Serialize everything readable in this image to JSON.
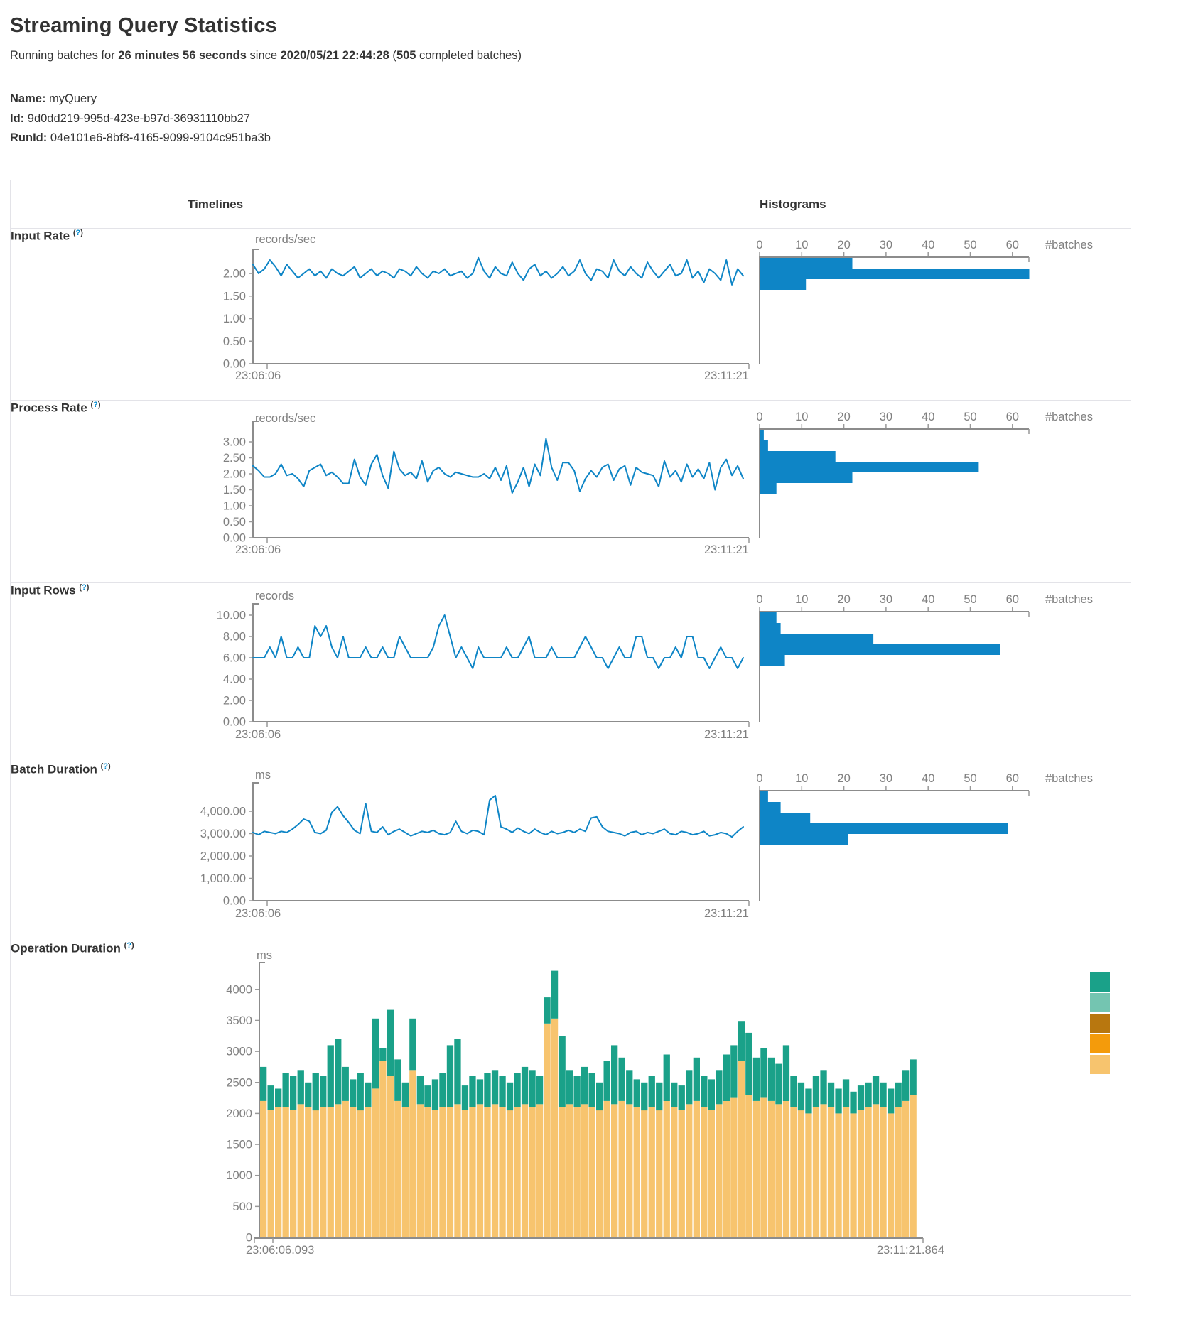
{
  "page": {
    "title": "Streaming Query Statistics",
    "status": {
      "pre": "Running batches for ",
      "duration": "26 minutes 56 seconds",
      "mid": " since ",
      "start_time": "2020/05/21 22:44:28",
      "open": " (",
      "completed": "505",
      "close": " completed batches)"
    },
    "fields": [
      {
        "label": "Name:",
        "value": "myQuery"
      },
      {
        "label": "Id:",
        "value": "9d0dd219-995d-423e-b97d-36931110bb27"
      },
      {
        "label": "RunId:",
        "value": "04e101e6-8bf8-4165-9099-9104c951ba3b"
      }
    ]
  },
  "table": {
    "col_timelines": "Timelines",
    "col_histograms": "Histograms",
    "help": {
      "open": "(",
      "q": "?",
      "close": ")"
    }
  },
  "colors": {
    "series_blue": "#0e85c6",
    "axis_gray": "#8c8c8c",
    "tick_text_gray": "#808080",
    "help_blue": "#0088cc",
    "table_border": "#e3e3e8",
    "stack_teal": "#1aa189",
    "stack_tan": "#f7c46e",
    "legend_swatches": [
      "#1aa189",
      "#74c5b1",
      "#b8770f",
      "#f49b0b",
      "#f7c46e"
    ]
  },
  "chart_data": [
    {
      "row_label": "Input Rate",
      "timeline": {
        "type": "line",
        "unit": "records/sec",
        "x_start": "23:06:06",
        "x_end": "23:11:21",
        "yticks": [
          0,
          0.5,
          1,
          1.5,
          2
        ],
        "ytick_labels": [
          "0.00",
          "0.50",
          "1.00",
          "1.50",
          "2.00"
        ],
        "values": [
          2.2,
          2.0,
          2.1,
          2.3,
          2.15,
          1.95,
          2.2,
          2.05,
          1.9,
          2.0,
          2.1,
          1.95,
          2.05,
          1.9,
          2.1,
          2.0,
          1.95,
          2.05,
          2.15,
          1.9,
          2.0,
          2.1,
          1.95,
          2.05,
          2.0,
          1.9,
          2.1,
          2.05,
          1.95,
          2.15,
          2.0,
          1.9,
          2.05,
          2.0,
          2.1,
          1.95,
          2.0,
          2.05,
          1.9,
          2.0,
          2.35,
          2.05,
          1.9,
          2.15,
          2.0,
          1.95,
          2.25,
          2.0,
          1.85,
          2.1,
          2.2,
          1.95,
          2.05,
          1.9,
          2.0,
          2.15,
          1.95,
          2.05,
          2.3,
          2.0,
          1.85,
          2.1,
          2.05,
          1.9,
          2.3,
          2.05,
          1.95,
          2.15,
          2.0,
          1.9,
          2.25,
          2.05,
          1.9,
          2.05,
          2.2,
          1.95,
          2.0,
          2.3,
          1.9,
          2.05,
          1.8,
          2.1,
          2.0,
          1.85,
          2.3,
          1.75,
          2.1,
          1.95
        ]
      },
      "histogram": {
        "type": "bar",
        "orientation": "horizontal",
        "xticks": [
          0,
          10,
          20,
          30,
          40,
          50,
          60
        ],
        "xlabel": "#batches",
        "bins_top_to_bottom": [
          22,
          64,
          11
        ]
      }
    },
    {
      "row_label": "Process Rate",
      "timeline": {
        "type": "line",
        "unit": "records/sec",
        "x_start": "23:06:06",
        "x_end": "23:11:21",
        "yticks": [
          0,
          0.5,
          1,
          1.5,
          2,
          2.5,
          3
        ],
        "ytick_labels": [
          "0.00",
          "0.50",
          "1.00",
          "1.50",
          "2.00",
          "2.50",
          "3.00"
        ],
        "values": [
          2.25,
          2.1,
          1.9,
          1.9,
          2.0,
          2.3,
          1.95,
          2.0,
          1.85,
          1.6,
          2.1,
          2.2,
          2.3,
          1.95,
          2.05,
          1.9,
          1.7,
          1.7,
          2.45,
          1.9,
          1.65,
          2.3,
          2.6,
          1.95,
          1.55,
          2.7,
          2.15,
          1.95,
          2.05,
          1.85,
          2.4,
          1.75,
          2.1,
          2.2,
          2.0,
          1.9,
          2.05,
          2.0,
          1.95,
          1.9,
          1.9,
          2.0,
          1.85,
          2.2,
          1.8,
          2.25,
          1.4,
          1.75,
          2.2,
          1.6,
          2.3,
          1.95,
          3.1,
          2.2,
          1.8,
          2.35,
          2.35,
          2.1,
          1.45,
          1.85,
          2.1,
          1.9,
          2.2,
          2.3,
          1.8,
          2.15,
          2.25,
          1.65,
          2.2,
          2.05,
          2.0,
          1.95,
          1.6,
          2.4,
          1.9,
          2.1,
          1.75,
          2.3,
          1.9,
          2.15,
          1.85,
          2.35,
          1.5,
          2.2,
          2.45,
          1.95,
          2.25,
          1.85
        ]
      },
      "histogram": {
        "type": "bar",
        "orientation": "horizontal",
        "xticks": [
          0,
          10,
          20,
          30,
          40,
          50,
          60
        ],
        "xlabel": "#batches",
        "bins_top_to_bottom": [
          1,
          2,
          18,
          52,
          22,
          4
        ]
      }
    },
    {
      "row_label": "Input Rows",
      "timeline": {
        "type": "line",
        "unit": "records",
        "x_start": "23:06:06",
        "x_end": "23:11:21",
        "yticks": [
          0,
          2,
          4,
          6,
          8,
          10
        ],
        "ytick_labels": [
          "0.00",
          "2.00",
          "4.00",
          "6.00",
          "8.00",
          "10.00"
        ],
        "values": [
          6,
          6,
          6,
          7,
          6,
          8,
          6,
          6,
          7,
          6,
          6,
          9,
          8,
          9,
          7,
          6,
          8,
          6,
          6,
          6,
          7,
          6,
          6,
          7,
          6,
          6,
          8,
          7,
          6,
          6,
          6,
          6,
          7,
          9,
          10,
          8,
          6,
          7,
          6,
          5,
          7,
          6,
          6,
          6,
          6,
          7,
          6,
          6,
          7,
          8,
          6,
          6,
          6,
          7,
          6,
          6,
          6,
          6,
          7,
          8,
          7,
          6,
          6,
          5,
          6,
          7,
          6,
          6,
          8,
          8,
          6,
          6,
          5,
          6,
          6,
          7,
          6,
          8,
          8,
          6,
          6,
          5,
          6,
          7,
          6,
          6,
          5,
          6
        ]
      },
      "histogram": {
        "type": "bar",
        "orientation": "horizontal",
        "xticks": [
          0,
          10,
          20,
          30,
          40,
          50,
          60
        ],
        "xlabel": "#batches",
        "bins_top_to_bottom": [
          4,
          5,
          27,
          57,
          6
        ]
      }
    },
    {
      "row_label": "Batch Duration",
      "timeline": {
        "type": "line",
        "unit": "ms",
        "x_start": "23:06:06",
        "x_end": "23:11:21",
        "yticks": [
          0,
          1000,
          2000,
          3000,
          4000
        ],
        "ytick_labels": [
          "0.00",
          "1,000.00",
          "2,000.00",
          "3,000.00",
          "4,000.00"
        ],
        "values": [
          3050,
          2950,
          3100,
          3050,
          3000,
          3100,
          3050,
          3200,
          3400,
          3650,
          3550,
          3050,
          3000,
          3150,
          3950,
          4200,
          3800,
          3500,
          3150,
          3000,
          4350,
          3100,
          3050,
          3300,
          2950,
          3100,
          3200,
          3050,
          2900,
          3000,
          3100,
          3050,
          3150,
          3000,
          2950,
          3050,
          3550,
          3100,
          3000,
          3150,
          3100,
          2950,
          4500,
          4700,
          3300,
          3200,
          3050,
          3250,
          3100,
          3000,
          3200,
          3050,
          2950,
          3100,
          3000,
          3050,
          3150,
          3050,
          3200,
          3100,
          3700,
          3750,
          3300,
          3100,
          3050,
          3000,
          2900,
          3050,
          3100,
          2950,
          3050,
          3000,
          3100,
          3200,
          3000,
          2950,
          3100,
          3050,
          2950,
          3000,
          3100,
          2900,
          2950,
          3050,
          3000,
          2850,
          3100,
          3300
        ]
      },
      "histogram": {
        "type": "bar",
        "orientation": "horizontal",
        "xticks": [
          0,
          10,
          20,
          30,
          40,
          50,
          60
        ],
        "xlabel": "#batches",
        "bins_top_to_bottom": [
          2,
          5,
          12,
          59,
          21
        ]
      }
    },
    {
      "row_label": "Operation Duration",
      "timeline": {
        "type": "stacked-bar",
        "unit": "ms",
        "x_start": "23:06:06.093",
        "x_end": "23:11:21.864",
        "yticks": [
          0,
          500,
          1000,
          1500,
          2000,
          2500,
          3000,
          3500,
          4000
        ],
        "ytick_labels": [
          "0",
          "500",
          "1000",
          "1500",
          "2000",
          "2500",
          "3000",
          "3500",
          "4000"
        ],
        "series": [
          {
            "name": "bottom-tan",
            "color": "#f7c46e",
            "values": [
              2200,
              2050,
              2100,
              2100,
              2050,
              2150,
              2100,
              2050,
              2100,
              2100,
              2150,
              2200,
              2100,
              2050,
              2100,
              2400,
              2850,
              2600,
              2200,
              2100,
              2700,
              2150,
              2100,
              2050,
              2100,
              2100,
              2150,
              2050,
              2100,
              2150,
              2100,
              2150,
              2100,
              2050,
              2100,
              2150,
              2100,
              2150,
              3450,
              3530,
              2100,
              2150,
              2100,
              2150,
              2100,
              2050,
              2200,
              2150,
              2200,
              2150,
              2100,
              2050,
              2100,
              2050,
              2200,
              2100,
              2050,
              2150,
              2200,
              2100,
              2050,
              2150,
              2200,
              2250,
              2850,
              2300,
              2200,
              2250,
              2200,
              2150,
              2200,
              2100,
              2050,
              2000,
              2100,
              2150,
              2100,
              2000,
              2100,
              2000,
              2050,
              2100,
              2150,
              2100,
              2000,
              2100,
              2200,
              2300
            ]
          },
          {
            "name": "top-teal",
            "color": "#1aa189",
            "values": [
              550,
              400,
              300,
              550,
              550,
              550,
              400,
              600,
              500,
              1000,
              1050,
              550,
              450,
              600,
              400,
              1130,
              200,
              1070,
              670,
              400,
              830,
              450,
              350,
              500,
              550,
              1000,
              1050,
              400,
              500,
              400,
              550,
              550,
              500,
              450,
              550,
              600,
              600,
              450,
              420,
              770,
              1150,
              550,
              500,
              600,
              550,
              450,
              650,
              950,
              700,
              550,
              450,
              450,
              500,
              450,
              750,
              400,
              400,
              550,
              700,
              500,
              500,
              550,
              750,
              850,
              630,
              1000,
              700,
              800,
              700,
              650,
              900,
              500,
              450,
              400,
              500,
              550,
              400,
              400,
              450,
              350,
              400,
              400,
              450,
              400,
              400,
              400,
              500,
              570
            ]
          }
        ],
        "legend_swatch_colors": [
          "#1aa189",
          "#74c5b1",
          "#b8770f",
          "#f49b0b",
          "#f7c46e"
        ]
      }
    }
  ]
}
